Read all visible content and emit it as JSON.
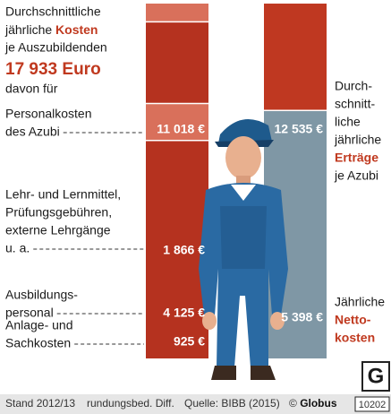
{
  "chart_data": {
    "type": "stacked-bar",
    "intro": {
      "line1": "Durchschnittliche",
      "line2": "jährliche",
      "line2_highlight": "Kosten",
      "line3": "je Auszubildenden",
      "total": "17 933 Euro",
      "line5": "davon für"
    },
    "stacks": [
      {
        "segments": [
          {
            "label": [
              "Personalkosten",
              "des Azubi"
            ],
            "value": 11018,
            "value_label": "11 018 €",
            "color": "#b5321f"
          },
          {
            "label": [
              "Lehr- und Lernmittel,",
              "Prüfungsgebühren,",
              "externe Lehrgänge",
              "u. a."
            ],
            "value": 1866,
            "value_label": "1 866 €",
            "color": "#d9705b"
          },
          {
            "label": [
              "Ausbildungs-",
              "personal"
            ],
            "value": 4125,
            "value_label": "4 125 €",
            "color": "#b5321f"
          },
          {
            "label": [
              "Anlage- und",
              "Sachkosten"
            ],
            "value": 925,
            "value_label": "925 €",
            "color": "#d9705b"
          }
        ]
      },
      {
        "segments": [
          {
            "label": [
              "Durch-",
              "schnitt-",
              "liche",
              "jährliche",
              "Erträge",
              "je Azubi"
            ],
            "value": 12535,
            "value_label": "12 535 €",
            "color": "#7f97a5"
          },
          {
            "label": [
              "Jährliche",
              "Netto-",
              "kosten"
            ],
            "value": 5398,
            "value_label": "5 398 €",
            "color": "#bf3821"
          }
        ]
      }
    ],
    "footer": {
      "date": "Stand 2012/13",
      "note": "rundungsbed. Diff.",
      "source": "Quelle: BIBB (2015)",
      "copyright": "©",
      "brand": "Globus",
      "number": "10202"
    }
  }
}
